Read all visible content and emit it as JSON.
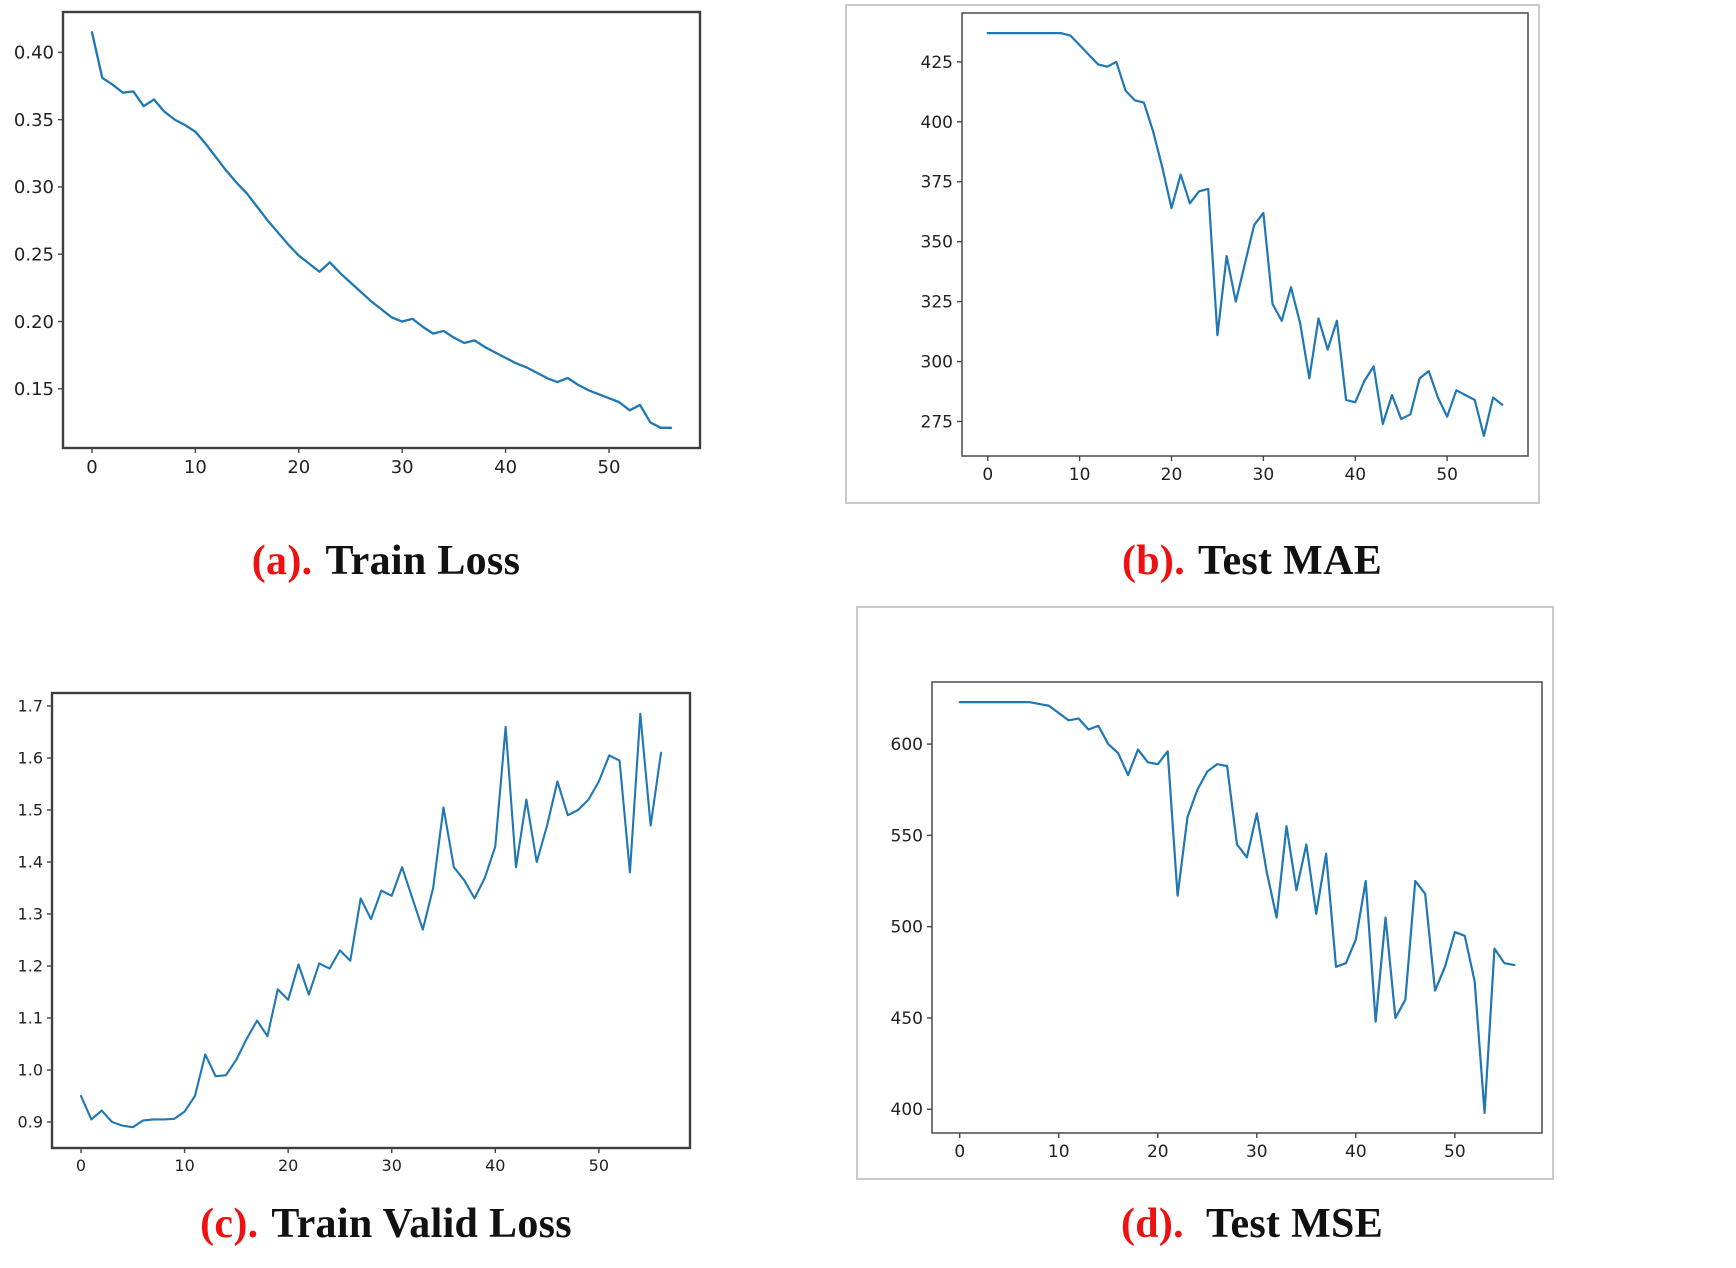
{
  "colors": {
    "line": "#1f77b4",
    "caption_red": "#ee1111",
    "caption_black": "#111111",
    "spine_dark": "#3f3f3f",
    "spine_light": "#555555",
    "figure_frame": "#c9c9c9",
    "tick": "#444444",
    "tick_label": "#222222",
    "background": "#ffffff"
  },
  "captions": {
    "a": {
      "prefix": "(a).",
      "title": "Train Loss"
    },
    "b": {
      "prefix": "(b).",
      "title": "Test MAE"
    },
    "c": {
      "prefix": "(c).",
      "title": "Train Valid Loss"
    },
    "d": {
      "prefix": "(d).",
      "title": "Test MSE"
    }
  },
  "chart_data": [
    {
      "id": "a",
      "type": "line",
      "title": "Train Loss",
      "xlabel": "",
      "ylabel": "",
      "grid": false,
      "legend": null,
      "x_start": 0,
      "xlim": [
        -2.8,
        58.8
      ],
      "ylim": [
        0.106,
        0.43
      ],
      "xticks": [
        0,
        10,
        20,
        30,
        40,
        50
      ],
      "xtick_labels": [
        "0",
        "10",
        "20",
        "30",
        "40",
        "50"
      ],
      "yticks": [
        0.4,
        0.35,
        0.3,
        0.25,
        0.2,
        0.15
      ],
      "ytick_labels": [
        "0.40",
        "0.35",
        "0.30",
        "0.25",
        "0.20",
        "0.15"
      ],
      "values": [
        0.415,
        0.381,
        0.376,
        0.37,
        0.371,
        0.36,
        0.365,
        0.356,
        0.35,
        0.346,
        0.341,
        0.332,
        0.322,
        0.312,
        0.303,
        0.295,
        0.285,
        0.275,
        0.266,
        0.257,
        0.249,
        0.243,
        0.237,
        0.244,
        0.236,
        0.229,
        0.222,
        0.215,
        0.209,
        0.203,
        0.2,
        0.202,
        0.196,
        0.191,
        0.193,
        0.188,
        0.184,
        0.186,
        0.181,
        0.177,
        0.173,
        0.169,
        0.166,
        0.162,
        0.158,
        0.155,
        0.158,
        0.153,
        0.149,
        0.146,
        0.143,
        0.14,
        0.134,
        0.138,
        0.125,
        0.121,
        0.121
      ]
    },
    {
      "id": "b",
      "type": "line",
      "title": "Test MAE",
      "xlabel": "",
      "ylabel": "",
      "grid": false,
      "legend": null,
      "x_start": 0,
      "xlim": [
        -2.8,
        58.8
      ],
      "ylim": [
        260.6,
        445.4
      ],
      "xticks": [
        0,
        10,
        20,
        30,
        40,
        50
      ],
      "xtick_labels": [
        "0",
        "10",
        "20",
        "30",
        "40",
        "50"
      ],
      "yticks": [
        425,
        400,
        375,
        350,
        325,
        300,
        275
      ],
      "ytick_labels": [
        "425",
        "400",
        "375",
        "350",
        "325",
        "300",
        "275"
      ],
      "values": [
        437,
        437,
        437,
        437,
        437,
        437,
        437,
        437,
        437,
        436,
        432,
        428,
        424,
        423,
        425,
        413,
        409,
        408,
        396,
        381,
        364,
        378,
        366,
        371,
        372,
        311,
        344,
        325,
        341,
        357,
        362,
        324,
        317,
        331,
        316,
        293,
        318,
        305,
        317,
        284,
        283,
        292,
        298,
        274,
        286,
        276,
        278,
        293,
        296,
        285,
        277,
        288,
        286,
        284,
        269,
        285,
        282
      ]
    },
    {
      "id": "c",
      "type": "line",
      "title": "Train Valid Loss",
      "xlabel": "",
      "ylabel": "",
      "grid": false,
      "legend": null,
      "x_start": 0,
      "xlim": [
        -2.8,
        58.8
      ],
      "ylim": [
        0.85,
        1.725
      ],
      "xticks": [
        0,
        10,
        20,
        30,
        40,
        50
      ],
      "xtick_labels": [
        "0",
        "10",
        "20",
        "30",
        "40",
        "50"
      ],
      "yticks": [
        1.7,
        1.6,
        1.5,
        1.4,
        1.3,
        1.2,
        1.1,
        1.0,
        0.9
      ],
      "ytick_labels": [
        "1.7",
        "1.6",
        "1.5",
        "1.4",
        "1.3",
        "1.2",
        "1.1",
        "1.0",
        "0.9"
      ],
      "values": [
        0.95,
        0.905,
        0.922,
        0.9,
        0.893,
        0.89,
        0.903,
        0.905,
        0.905,
        0.906,
        0.92,
        0.95,
        1.03,
        0.988,
        0.99,
        1.02,
        1.06,
        1.095,
        1.065,
        1.155,
        1.135,
        1.203,
        1.145,
        1.205,
        1.195,
        1.23,
        1.21,
        1.33,
        1.29,
        1.345,
        1.335,
        1.39,
        1.33,
        1.27,
        1.35,
        1.505,
        1.39,
        1.365,
        1.33,
        1.37,
        1.43,
        1.66,
        1.39,
        1.52,
        1.4,
        1.47,
        1.555,
        1.49,
        1.5,
        1.52,
        1.555,
        1.605,
        1.595,
        1.38,
        1.685,
        1.47,
        1.61
      ]
    },
    {
      "id": "d",
      "type": "line",
      "title": "Test MSE",
      "xlabel": "",
      "ylabel": "",
      "grid": false,
      "legend": null,
      "x_start": 0,
      "xlim": [
        -2.8,
        58.8
      ],
      "ylim": [
        387,
        634
      ],
      "xticks": [
        0,
        10,
        20,
        30,
        40,
        50
      ],
      "xtick_labels": [
        "0",
        "10",
        "20",
        "30",
        "40",
        "50"
      ],
      "yticks": [
        600,
        550,
        500,
        450,
        400
      ],
      "ytick_labels": [
        "600",
        "550",
        "500",
        "450",
        "400"
      ],
      "values": [
        623,
        623,
        623,
        623,
        623,
        623,
        623,
        623,
        622,
        621,
        617,
        613,
        614,
        608,
        610,
        600,
        595,
        583,
        597,
        590,
        589,
        596,
        517,
        560,
        575,
        585,
        589,
        588,
        545,
        538,
        562,
        530,
        505,
        555,
        520,
        545,
        507,
        540,
        478,
        480,
        493,
        525,
        448,
        505,
        450,
        460,
        525,
        518,
        465,
        478,
        497,
        495,
        470,
        398,
        488,
        480,
        479
      ]
    }
  ]
}
